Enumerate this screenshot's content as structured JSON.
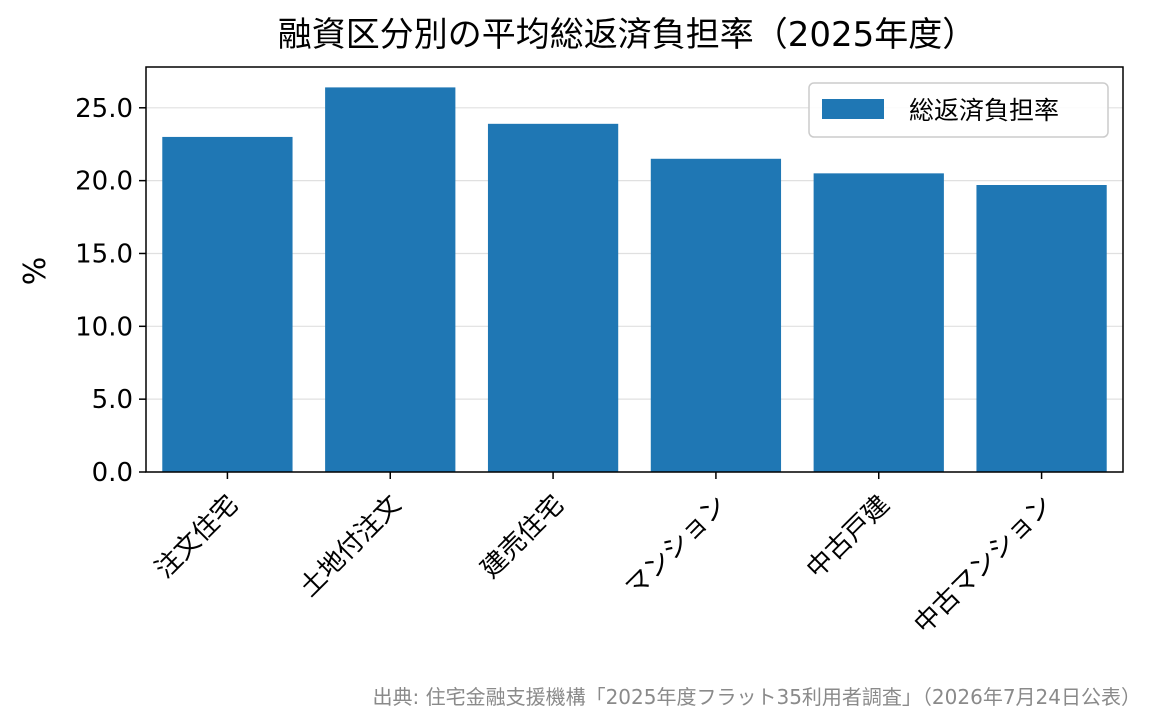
{
  "chart_data": {
    "type": "bar",
    "title": "融資区分別の平均総返済負担率（2025年度）",
    "ylabel": "%",
    "xlabel": "",
    "categories": [
      "注文住宅",
      "土地付注文",
      "建売住宅",
      "マンション",
      "中古戸建",
      "中古マンション"
    ],
    "series": [
      {
        "name": "総返済負担率",
        "values": [
          23.0,
          26.4,
          23.9,
          21.5,
          20.5,
          19.7
        ],
        "color": "#1f77b4"
      }
    ],
    "ylim": [
      0,
      27.8
    ],
    "yticks": [
      "0.0",
      "5.0",
      "10.0",
      "15.0",
      "20.0",
      "25.0"
    ],
    "grid": "y",
    "legend_position": "top-right"
  },
  "source_note": "出典: 住宅金融支援機構「2025年度フラット35利用者調査」（2026年7月24日公表）"
}
